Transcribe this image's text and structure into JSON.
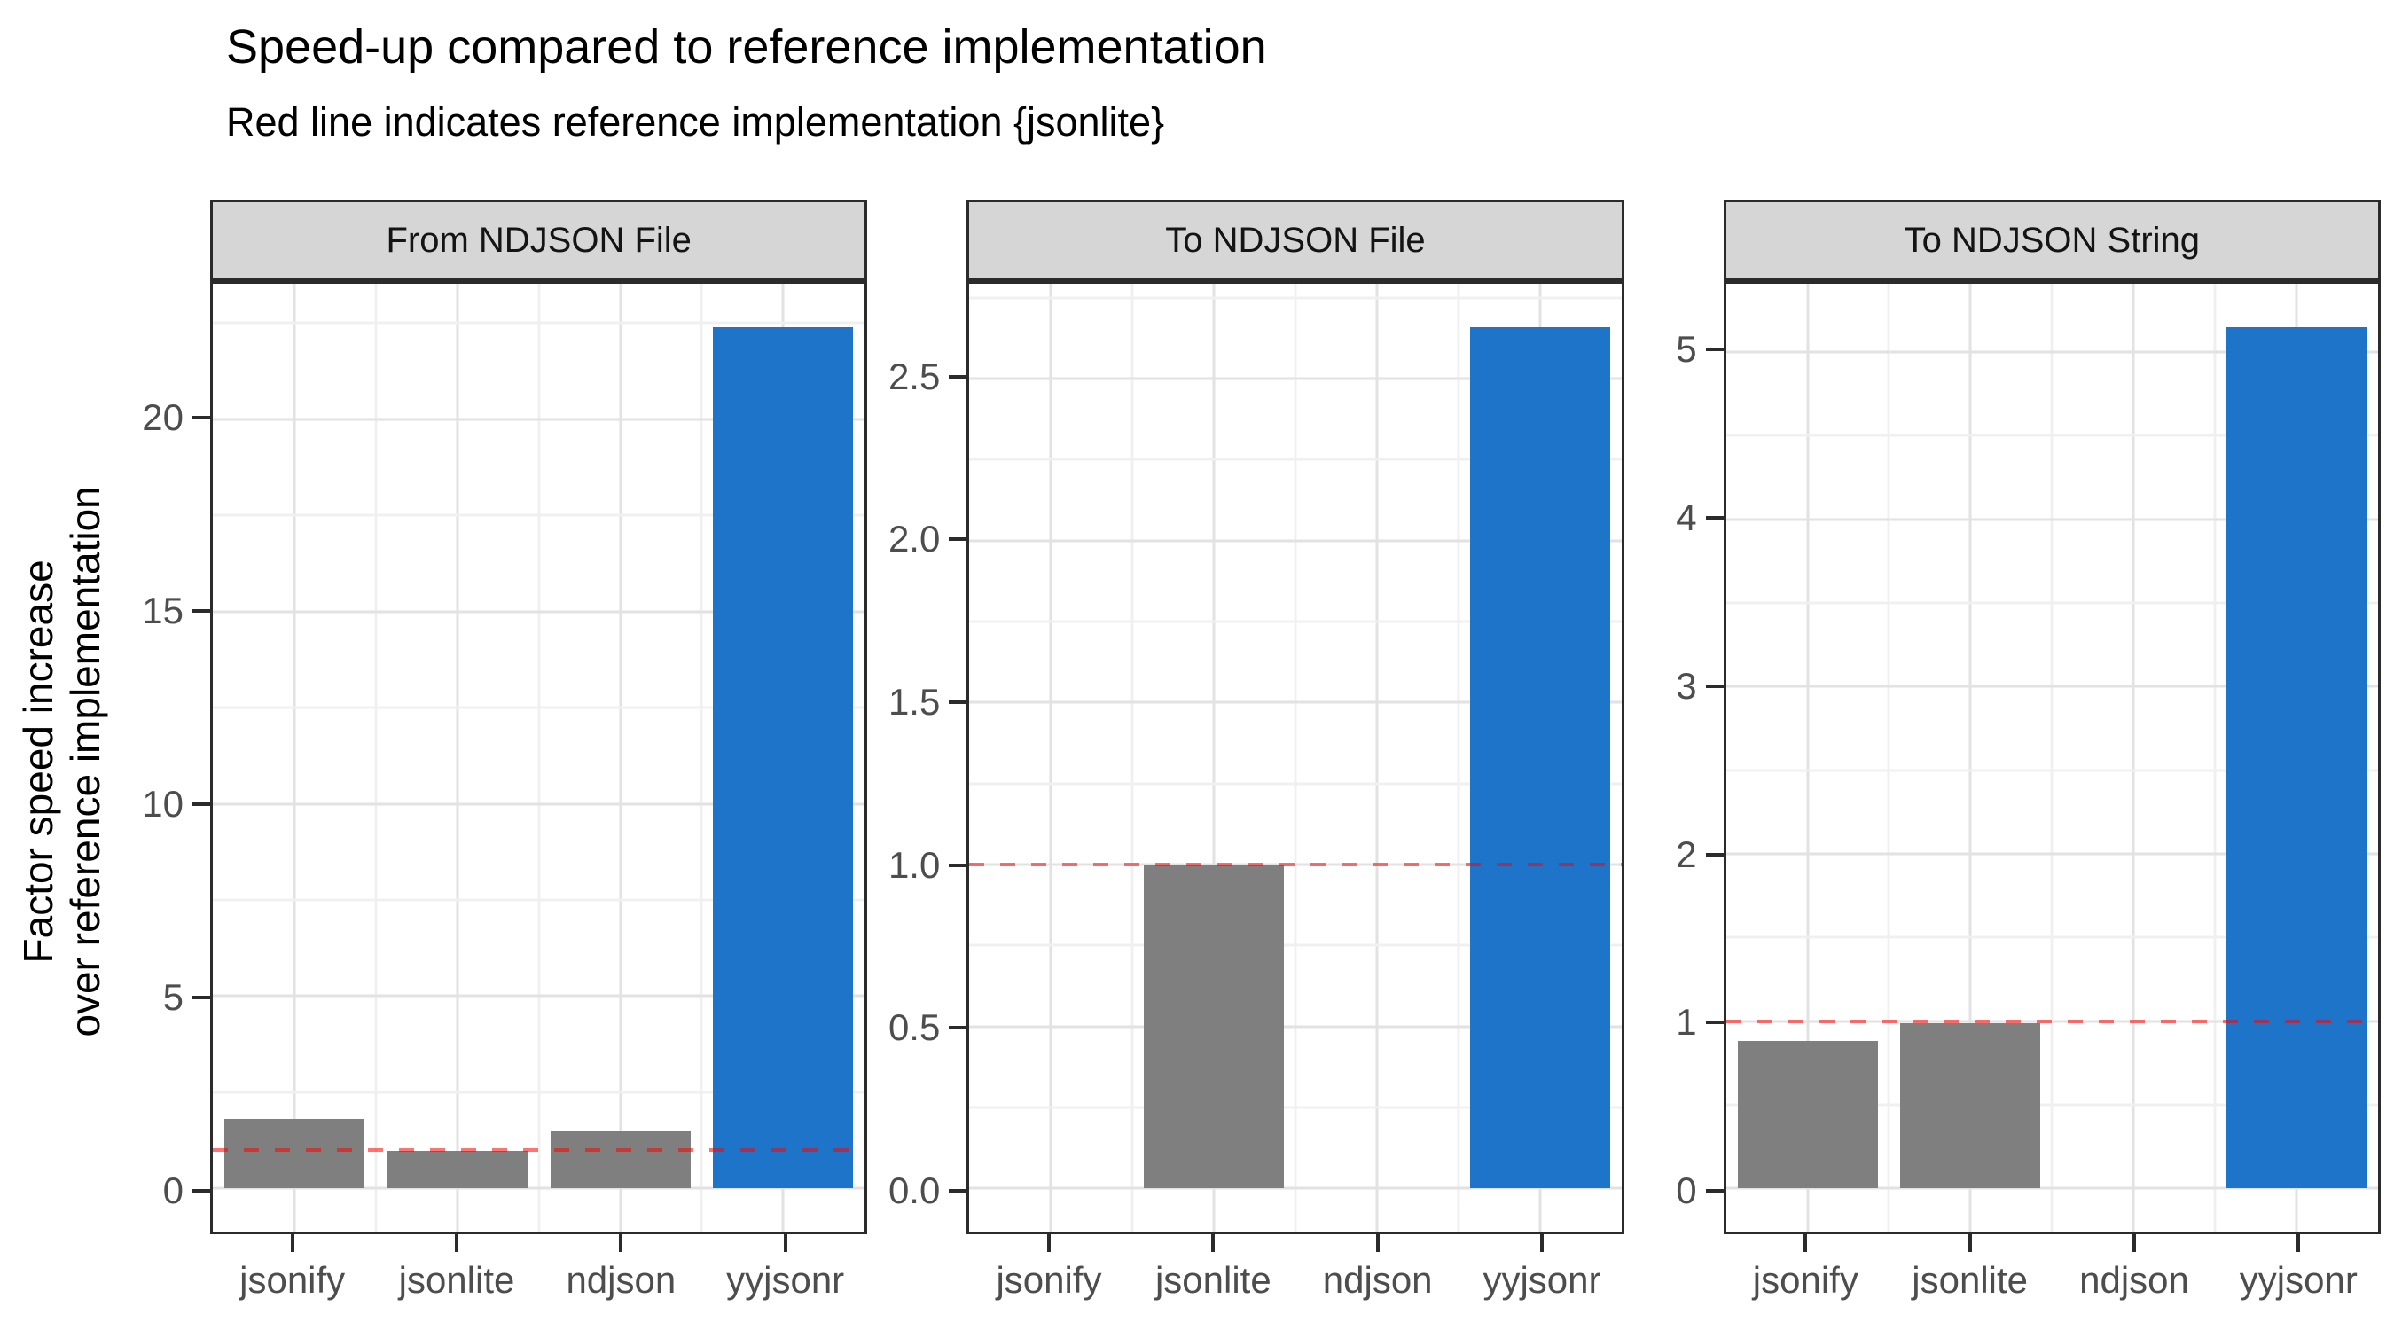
{
  "chart_data": {
    "type": "bar",
    "title": "Speed-up compared to reference implementation",
    "subtitle": "Red line indicates reference implementation {jsonlite}",
    "ylabel_lines": [
      "Factor speed increase",
      "over reference implementation"
    ],
    "categories": [
      "jsonify",
      "jsonlite",
      "ndjson",
      "yyjsonr"
    ],
    "highlight_category": "yyjsonr",
    "reference_line": 1.0,
    "legend": "none",
    "grid": "on",
    "colors": {
      "bar_default": "#7f7f7f",
      "bar_highlight": "#1d74c9",
      "reference_line": "#ff0000",
      "strip_background": "#d6d6d6",
      "panel_border": "#2b2b2b",
      "axis_text": "#4d4d4d"
    },
    "panels": [
      {
        "label": "From NDJSON File",
        "values": [
          1.8,
          0.97,
          1.48,
          22.4
        ],
        "ylim": [
          -1.12,
          23.52
        ],
        "ticks": [
          {
            "v": 0,
            "label": "0"
          },
          {
            "v": 5,
            "label": "5"
          },
          {
            "v": 10,
            "label": "10"
          },
          {
            "v": 15,
            "label": "15"
          },
          {
            "v": 20,
            "label": "20"
          }
        ],
        "minor": [
          2.5,
          7.5,
          12.5,
          17.5,
          22.5
        ]
      },
      {
        "label": "To NDJSON File",
        "values": [
          null,
          1.0,
          null,
          2.66
        ],
        "ylim": [
          -0.133,
          2.793
        ],
        "ticks": [
          {
            "v": 0.0,
            "label": "0.0"
          },
          {
            "v": 0.5,
            "label": "0.5"
          },
          {
            "v": 1.0,
            "label": "1.0"
          },
          {
            "v": 1.5,
            "label": "1.5"
          },
          {
            "v": 2.0,
            "label": "2.0"
          },
          {
            "v": 2.5,
            "label": "2.5"
          }
        ],
        "minor": [
          0.25,
          0.75,
          1.25,
          1.75,
          2.25,
          2.75
        ]
      },
      {
        "label": "To NDJSON String",
        "values": [
          0.88,
          0.99,
          null,
          5.15
        ],
        "ylim": [
          -0.2575,
          5.4075
        ],
        "ticks": [
          {
            "v": 0,
            "label": "0"
          },
          {
            "v": 1,
            "label": "1"
          },
          {
            "v": 2,
            "label": "2"
          },
          {
            "v": 3,
            "label": "3"
          },
          {
            "v": 4,
            "label": "4"
          },
          {
            "v": 5,
            "label": "5"
          }
        ],
        "minor": [
          0.5,
          1.5,
          2.5,
          3.5,
          4.5
        ]
      }
    ]
  }
}
